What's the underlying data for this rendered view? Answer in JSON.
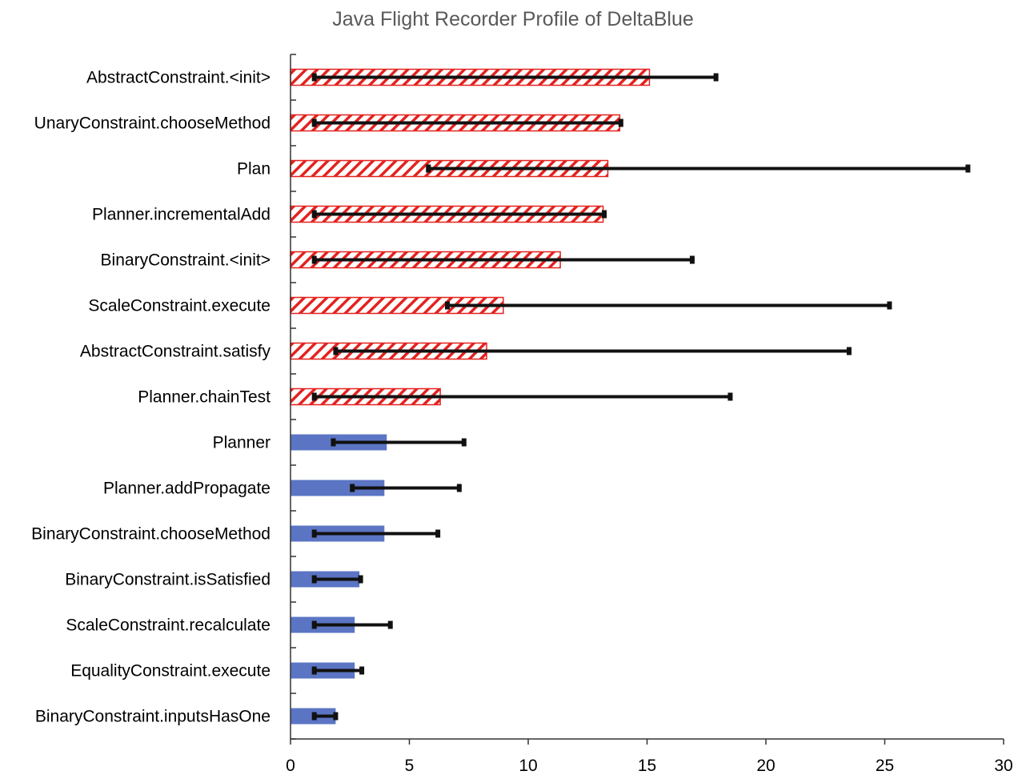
{
  "chart_data": {
    "type": "bar",
    "orientation": "horizontal",
    "title": "Java Flight Recorder Profile of DeltaBlue",
    "xlabel": "",
    "ylabel": "",
    "xlim": [
      0,
      30
    ],
    "xticks": [
      0,
      5,
      10,
      15,
      20,
      25,
      30
    ],
    "grid": false,
    "legend": "none",
    "categories": [
      "AbstractConstraint.<init>",
      "UnaryConstraint.chooseMethod",
      "Plan",
      "Planner.incrementalAdd",
      "BinaryConstraint.<init>",
      "ScaleConstraint.execute",
      "AbstractConstraint.satisfy",
      "Planner.chainTest",
      "Planner",
      "Planner.addPropagate",
      "BinaryConstraint.chooseMethod",
      "BinaryConstraint.isSatisfied",
      "ScaleConstraint.recalculate",
      "EqualityConstraint.execute",
      "BinaryConstraint.inputsHasOne"
    ],
    "values": [
      15.1,
      13.85,
      13.35,
      13.15,
      11.35,
      8.95,
      8.25,
      6.3,
      4.05,
      3.95,
      3.95,
      2.9,
      2.7,
      2.7,
      1.9
    ],
    "error_low": [
      1.0,
      1.0,
      5.8,
      1.0,
      1.0,
      6.6,
      1.9,
      1.0,
      1.8,
      2.6,
      1.0,
      1.0,
      1.0,
      1.0,
      1.0
    ],
    "error_high": [
      17.9,
      13.9,
      28.5,
      13.2,
      16.9,
      25.2,
      23.5,
      18.5,
      7.3,
      7.1,
      6.2,
      2.95,
      4.2,
      3.0,
      1.9
    ],
    "styles": [
      "hatched",
      "hatched",
      "hatched",
      "hatched",
      "hatched",
      "hatched",
      "hatched",
      "hatched",
      "solid",
      "solid",
      "solid",
      "solid",
      "solid",
      "solid",
      "solid"
    ],
    "colors": {
      "hatched": "#e3221f",
      "solid": "#5b75c4",
      "error_bar": "#111111",
      "axis": "#333333",
      "title": "#595959",
      "text": "#000000"
    }
  }
}
